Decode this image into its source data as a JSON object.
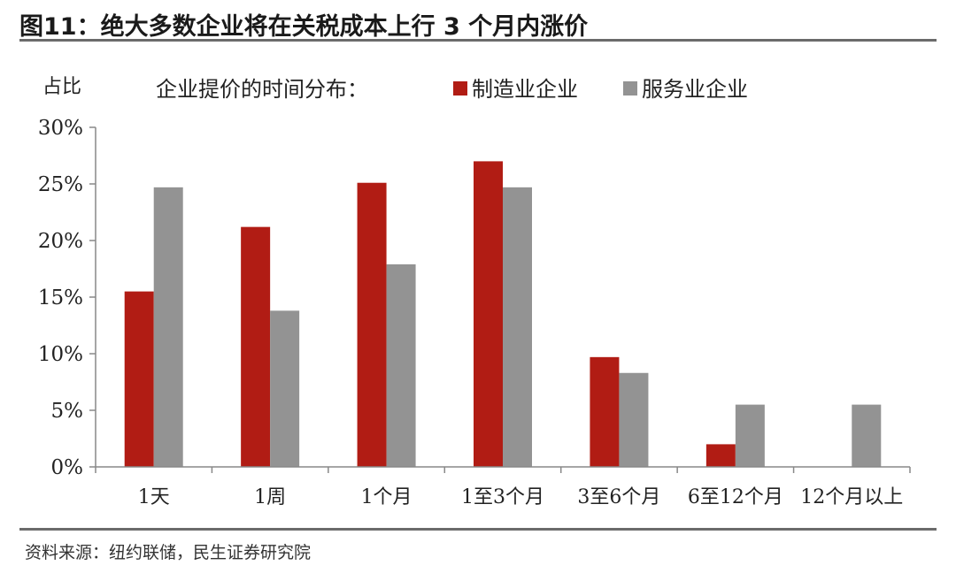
{
  "figure": {
    "title": "图11：绝大多数企业将在关税成本上行 3 个月内涨价",
    "source": "资料来源：纽约联储，民生证券研究院"
  },
  "chart_data": {
    "type": "bar",
    "title": "企业提价的时间分布：",
    "ylabel": "占比",
    "xlabel": "",
    "categories": [
      "1天",
      "1周",
      "1个月",
      "1至3个月",
      "3至6个月",
      "6至12个月",
      "12个月以上"
    ],
    "series": [
      {
        "name": "制造业企业",
        "color": "#b11c14",
        "values": [
          15.5,
          21.2,
          25.1,
          27.0,
          9.7,
          2.0,
          0.0
        ]
      },
      {
        "name": "服务业企业",
        "color": "#939393",
        "values": [
          24.7,
          13.8,
          17.9,
          24.7,
          8.3,
          5.5,
          5.5
        ]
      }
    ],
    "ylim": [
      0,
      30
    ],
    "yticks": [
      "0%",
      "5%",
      "10%",
      "15%",
      "20%",
      "25%",
      "30%"
    ],
    "grid": false,
    "legend_position": "top"
  }
}
